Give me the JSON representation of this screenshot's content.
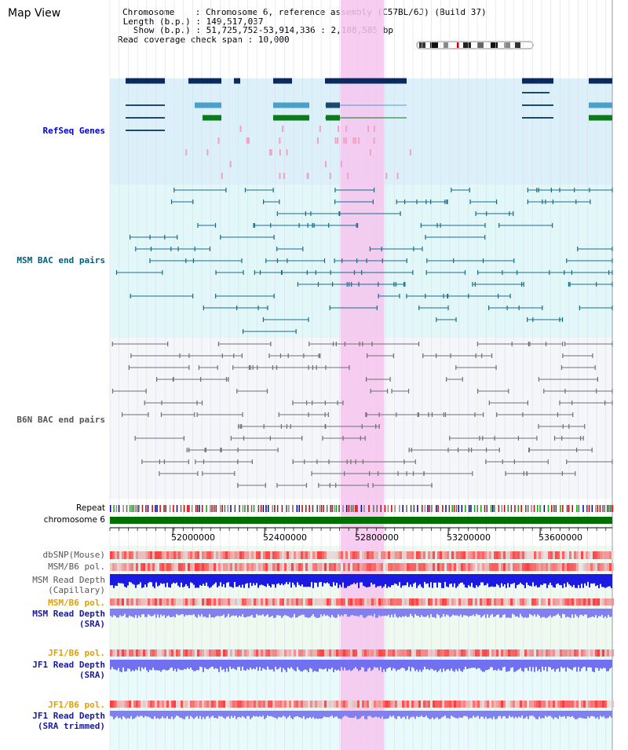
{
  "view": {
    "title": "Map View"
  },
  "info": {
    "chromosome_label": "Chromosome",
    "chromosome_value": "Chromosome 6, reference assembly (C57BL/6J) (Build 37)",
    "length_label": "Length (b.p.)",
    "length_value": "149,517,037",
    "show_label": "Show (b.p.)",
    "show_value": "51,725,752-53,914,336 : 2,188,585 bp",
    "coverage_label": "Read coverage check span",
    "coverage_value": "10,000"
  },
  "tracks": {
    "refseq": "RefSeq Genes",
    "msm_bac": "MSM BAC end pairs",
    "b6n_bac": "B6N BAC end pairs",
    "repeat": "Repeat",
    "chromosome": "chromosome 6",
    "dbsnp": "dbSNP(Mouse)",
    "msm_b6_pol_1": "MSM/B6 pol.",
    "msm_read_depth_cap_1": "MSM Read Depth",
    "msm_read_depth_cap_2": "(Capillary)",
    "msm_b6_pol_2": "MSM/B6 pol.",
    "msm_read_depth_sra_1": "MSM Read Depth",
    "msm_read_depth_sra_2": "(SRA)",
    "jf1_b6_pol_1": "JF1/B6 pol.",
    "jf1_read_depth_sra_1": "JF1 Read Depth",
    "jf1_read_depth_sra_2": "(SRA)",
    "jf1_b6_pol_2": "JF1/B6 pol.",
    "jf1_read_depth_trim_1": "JF1 Read Depth",
    "jf1_read_depth_trim_2": "(SRA trimmed)"
  },
  "axis": {
    "ticks": [
      "52000000",
      "52400000",
      "52800000",
      "53200000",
      "53600000"
    ],
    "tick_values": [
      52000000,
      52400000,
      52800000,
      53200000,
      53600000
    ],
    "range": [
      51725752,
      53914336
    ]
  },
  "highlight": {
    "start": 52731000,
    "end": 52920000
  },
  "colors": {
    "refseq_label": "#0000cc",
    "msm_label": "#006080",
    "b6n_label": "#555555",
    "pol_orange": "#e0a000",
    "depth_blue": "#1a1aa0",
    "highlight": "#f6c6ee",
    "chromosome_bar": "#007000"
  }
}
